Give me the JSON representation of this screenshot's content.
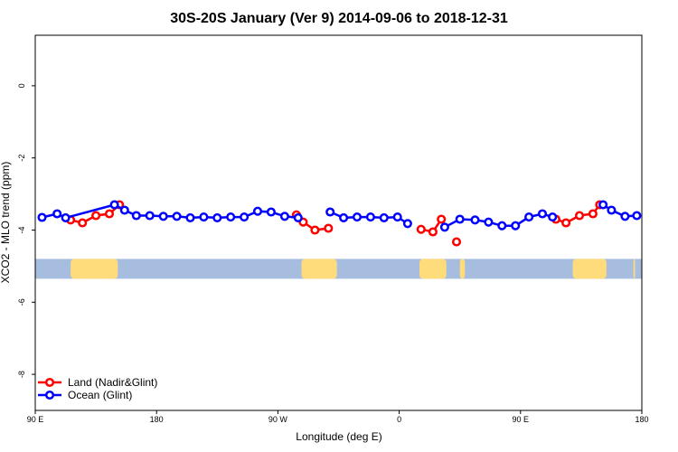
{
  "chart_data": {
    "type": "line",
    "title": "30S-20S January (Ver 9)   2014-09-06 to 2018-12-31",
    "xlabel": "Longitude (deg E)",
    "ylabel": "XCO2 - MLO trend (ppm)",
    "xlim": [
      90,
      450
    ],
    "ylim": [
      -9,
      1.4
    ],
    "x_ticks": [
      {
        "value": 90,
        "label": "90 E"
      },
      {
        "value": 162,
        "label": "180"
      },
      {
        "value": 234,
        "label": "90 W"
      },
      {
        "value": 306,
        "label": "0"
      },
      {
        "value": 378,
        "label": "90 E"
      },
      {
        "value": 450,
        "label": "180"
      }
    ],
    "y_ticks": [
      {
        "value": 0,
        "label": "0"
      },
      {
        "value": -2,
        "label": "-2"
      },
      {
        "value": -4,
        "label": "-4"
      },
      {
        "value": -6,
        "label": "-6"
      },
      {
        "value": -8,
        "label": "-8"
      }
    ],
    "legend_position": "bottom-left",
    "grid": false,
    "series": [
      {
        "name": "Land (Nadir&Glint)",
        "color": "#ff0000",
        "segments": [
          [
            [
              111,
              -3.72
            ],
            [
              118,
              -3.8
            ],
            [
              126,
              -3.6
            ],
            [
              134,
              -3.55
            ],
            [
              140,
              -3.3
            ]
          ],
          [
            [
              245,
              -3.58
            ],
            [
              249,
              -3.78
            ],
            [
              256,
              -4.0
            ],
            [
              264,
              -3.95
            ]
          ],
          [
            [
              319,
              -3.98
            ],
            [
              326,
              -4.05
            ],
            [
              331,
              -3.7
            ]
          ],
          [
            [
              340,
              -4.33
            ]
          ],
          [
            [
              399,
              -3.7
            ],
            [
              405,
              -3.8
            ],
            [
              413,
              -3.6
            ],
            [
              421,
              -3.55
            ],
            [
              425,
              -3.3
            ]
          ]
        ]
      },
      {
        "name": "Ocean (Glint)",
        "color": "#0000ff",
        "segments": [
          [
            [
              94,
              -3.65
            ],
            [
              103,
              -3.55
            ],
            [
              108,
              -3.66
            ],
            [
              137,
              -3.3
            ],
            [
              143,
              -3.45
            ],
            [
              150,
              -3.6
            ],
            [
              158,
              -3.6
            ],
            [
              166,
              -3.62
            ],
            [
              174,
              -3.62
            ],
            [
              182,
              -3.66
            ],
            [
              190,
              -3.64
            ],
            [
              198,
              -3.66
            ],
            [
              206,
              -3.64
            ],
            [
              214,
              -3.64
            ],
            [
              222,
              -3.48
            ],
            [
              230,
              -3.5
            ],
            [
              238,
              -3.62
            ],
            [
              246,
              -3.66
            ]
          ],
          [
            [
              265,
              -3.5
            ],
            [
              273,
              -3.66
            ],
            [
              281,
              -3.64
            ],
            [
              289,
              -3.64
            ],
            [
              297,
              -3.66
            ],
            [
              305,
              -3.64
            ],
            [
              311,
              -3.82
            ]
          ],
          [
            [
              333,
              -3.92
            ],
            [
              342,
              -3.7
            ],
            [
              351,
              -3.72
            ],
            [
              359,
              -3.78
            ],
            [
              367,
              -3.88
            ],
            [
              375,
              -3.88
            ],
            [
              383,
              -3.64
            ],
            [
              391,
              -3.55
            ],
            [
              397,
              -3.64
            ]
          ],
          [
            [
              427,
              -3.3
            ],
            [
              432,
              -3.45
            ],
            [
              440,
              -3.62
            ],
            [
              447,
              -3.6
            ]
          ]
        ]
      }
    ],
    "landmask_band": {
      "y_range": [
        -4.8,
        -5.35
      ],
      "ocean_color": "#a6bde0",
      "land_color": "#fedb7b",
      "land_spans": [
        [
          111,
          139
        ],
        [
          248,
          269
        ],
        [
          318,
          334
        ],
        [
          342,
          345
        ],
        [
          409,
          429
        ],
        [
          445,
          446
        ]
      ]
    }
  }
}
